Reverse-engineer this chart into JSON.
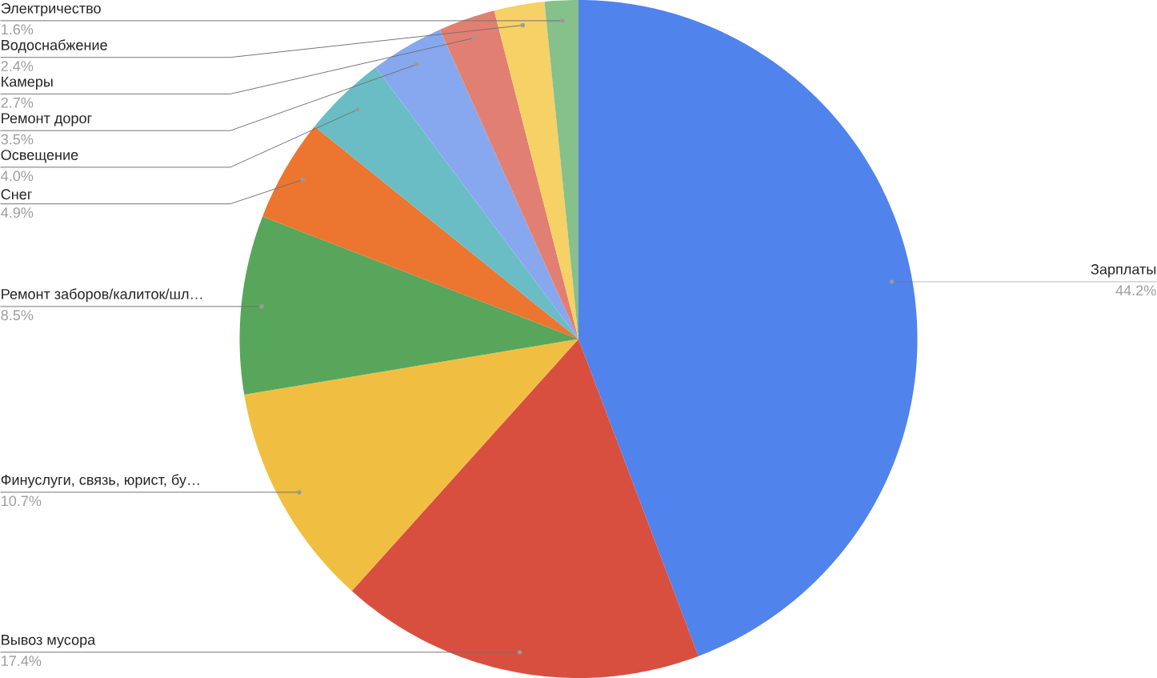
{
  "chart_data": {
    "type": "pie",
    "categories": [
      "Зарплаты",
      "Вывоз мусора",
      "Финуслуги, связь, юрист, бу…",
      "Ремонт заборов/калиток/шл…",
      "Снег",
      "Освещение",
      "Ремонт дорог",
      "Камеры",
      "Водоснабжение",
      "Электричество"
    ],
    "values": [
      44.2,
      17.4,
      10.7,
      8.5,
      4.9,
      4.0,
      3.5,
      2.7,
      2.4,
      1.6
    ],
    "value_labels": [
      "44.2%",
      "17.4%",
      "10.7%",
      "8.5%",
      "4.9%",
      "4.0%",
      "3.5%",
      "2.7%",
      "2.4%",
      "1.6%"
    ],
    "colors": [
      "#5083ec",
      "#d94f3f",
      "#f0bf42",
      "#58a65b",
      "#ec7530",
      "#6abdc5",
      "#87a8ef",
      "#e27f73",
      "#f5d166",
      "#86c08a"
    ]
  }
}
